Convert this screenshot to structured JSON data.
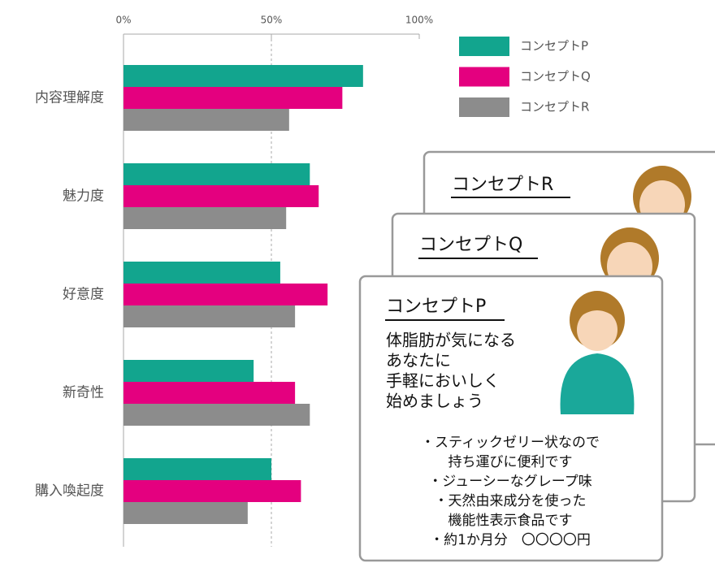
{
  "chart_data": {
    "type": "bar",
    "orientation": "horizontal",
    "categories": [
      "内容理解度",
      "魅力度",
      "好意度",
      "新奇性",
      "購入喚起度"
    ],
    "series": [
      {
        "name": "コンセプトP",
        "color": "#12a58e",
        "values": [
          81,
          63,
          53,
          44,
          50
        ]
      },
      {
        "name": "コンセプトQ",
        "color": "#e4007f",
        "values": [
          74,
          66,
          69,
          58,
          60
        ]
      },
      {
        "name": "コンセプトR",
        "color": "#8c8c8c",
        "values": [
          56,
          55,
          58,
          63,
          42
        ]
      }
    ],
    "xlim": [
      0,
      100
    ],
    "xticks": [
      {
        "value": 0,
        "label": "0%"
      },
      {
        "value": 50,
        "label": "50%"
      },
      {
        "value": 100,
        "label": "100%"
      }
    ],
    "grid": true,
    "legend": "top-right"
  },
  "cards": [
    {
      "title": "コンセプトR"
    },
    {
      "title": "コンセプトQ"
    },
    {
      "title": "コンセプトP",
      "headline": [
        "体脂肪が気になる",
        "あなたに",
        "手軽においしく",
        "始めましょう"
      ],
      "bullets": [
        "・スティックゼリー状なので",
        "持ち運びに便利です",
        "・ジューシーなグレープ味",
        "・天然由来成分を使った",
        "機能性表示食品です",
        "・約1か月分　〇〇〇〇円"
      ]
    }
  ]
}
